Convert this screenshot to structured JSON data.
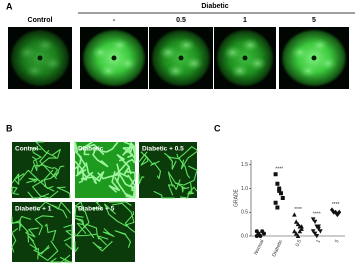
{
  "panel_a": {
    "label": "A",
    "group_label": "Diabetic",
    "columns": [
      "Control",
      "-",
      "0.5",
      "1",
      "5"
    ]
  },
  "panel_b": {
    "label": "B",
    "images": [
      "Control",
      "Diabetic",
      "Diabetic + 0.5",
      "Diabetic + 1",
      "Diabetic + 5"
    ]
  },
  "panel_c_label": "C",
  "chart_data": {
    "type": "scatter",
    "y_label": "GRADE",
    "categories": [
      "Normal",
      "Diabetic",
      "0.5",
      "1",
      "5"
    ],
    "values": [
      [
        0.1,
        0.05,
        0.0,
        0.1,
        0.05,
        0.0
      ],
      [
        1.3,
        1.1,
        1.0,
        0.9,
        0.8,
        0.7,
        0.6,
        0.95
      ],
      [
        0.45,
        0.3,
        0.25,
        0.2,
        0.15,
        0.1,
        0.05,
        0.0,
        0.1,
        0.2
      ],
      [
        0.35,
        0.3,
        0.2,
        0.15,
        0.1,
        0.1,
        0.05,
        0.0,
        0.2
      ],
      [
        0.55,
        0.5,
        0.5,
        0.45,
        0.5
      ]
    ],
    "markers": [
      "circle",
      "square",
      "triangle",
      "triangle-down",
      "diamond"
    ],
    "color": "#111111",
    "significance": [
      null,
      "****",
      "****",
      "****",
      "****"
    ],
    "significance_colors": [
      null,
      "#000000",
      "#e03030",
      "#e03030",
      "#e03030"
    ],
    "ylim": [
      0,
      1.6
    ],
    "yticks": [
      {
        "value": 0,
        "label": "0.0"
      },
      {
        "value": 0.5,
        "label": "0.5"
      },
      {
        "value": 1,
        "label": "1.0"
      },
      {
        "value": 1.5,
        "label": "1.5"
      }
    ]
  }
}
